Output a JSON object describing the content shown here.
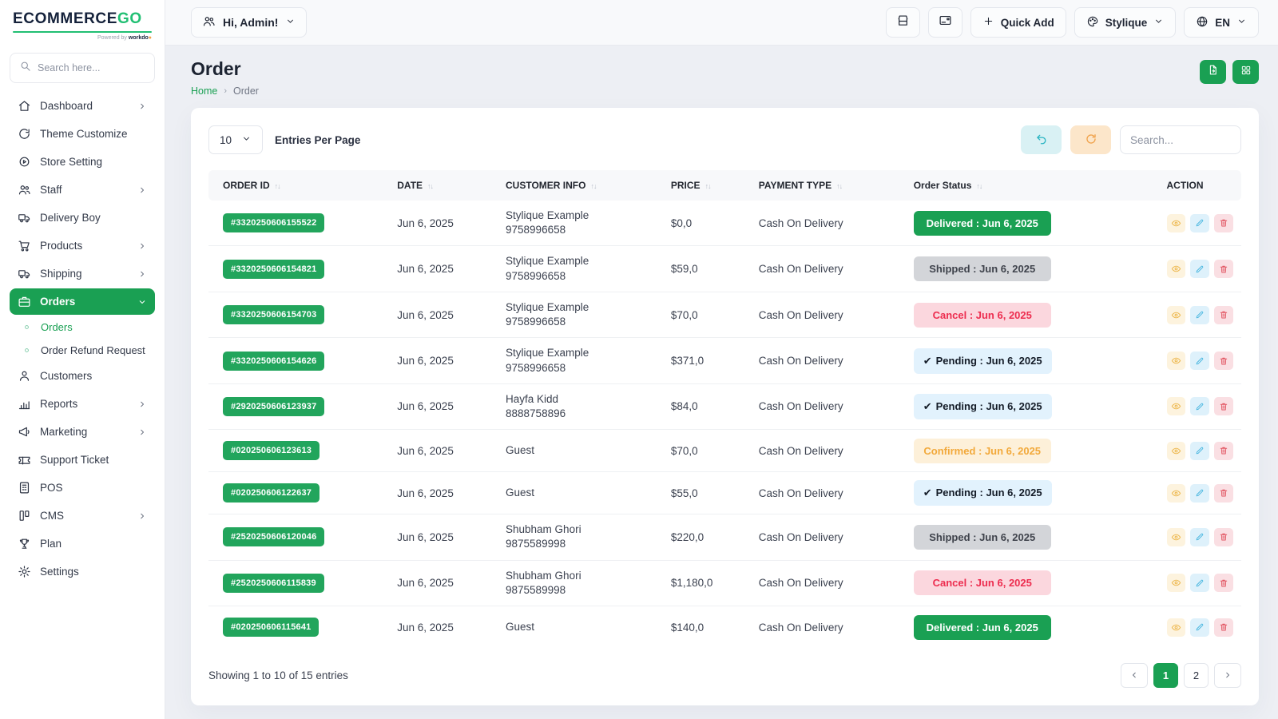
{
  "brand": {
    "logo_main": "ECOMMERCE",
    "logo_accent": "GO",
    "powered_by": "Powered by",
    "powered_brand": "workdo"
  },
  "topbar": {
    "greeting": "Hi, Admin!",
    "quick_add_label": "Quick Add",
    "theme_label": "Stylique",
    "lang_label": "EN"
  },
  "sidebar": {
    "search_placeholder": "Search here...",
    "items": [
      {
        "icon": "home",
        "label": "Dashboard",
        "chevron": "right"
      },
      {
        "icon": "theme",
        "label": "Theme Customize"
      },
      {
        "icon": "gear-badge",
        "label": "Store Setting"
      },
      {
        "icon": "users",
        "label": "Staff",
        "chevron": "right"
      },
      {
        "icon": "truck",
        "label": "Delivery Boy"
      },
      {
        "icon": "cart",
        "label": "Products",
        "chevron": "right"
      },
      {
        "icon": "truck",
        "label": "Shipping",
        "chevron": "right"
      },
      {
        "icon": "briefcase",
        "label": "Orders",
        "chevron": "down",
        "active": true
      },
      {
        "icon": "dot",
        "label": "Orders",
        "sub": true,
        "subactive": true
      },
      {
        "icon": "dot",
        "label": "Order Refund Request",
        "sub": true
      },
      {
        "icon": "user",
        "label": "Customers"
      },
      {
        "icon": "chart",
        "label": "Reports",
        "chevron": "right"
      },
      {
        "icon": "megaphone",
        "label": "Marketing",
        "chevron": "right"
      },
      {
        "icon": "ticket",
        "label": "Support Ticket"
      },
      {
        "icon": "pos",
        "label": "POS"
      },
      {
        "icon": "cms",
        "label": "CMS",
        "chevron": "right"
      },
      {
        "icon": "trophy",
        "label": "Plan"
      },
      {
        "icon": "gear",
        "label": "Settings"
      }
    ]
  },
  "page": {
    "title": "Order",
    "breadcrumb_home": "Home",
    "breadcrumb_current": "Order"
  },
  "controls": {
    "entries_value": "10",
    "entries_label": "Entries Per Page",
    "search_placeholder": "Search..."
  },
  "table": {
    "headers": [
      {
        "label": "ORDER ID",
        "sortable": true
      },
      {
        "label": "DATE",
        "sortable": true
      },
      {
        "label": "CUSTOMER INFO",
        "sortable": true
      },
      {
        "label": "PRICE",
        "sortable": true
      },
      {
        "label": "PAYMENT TYPE",
        "sortable": true
      },
      {
        "label": "Order Status",
        "sortable": true
      },
      {
        "label": "ACTION",
        "sortable": false
      }
    ],
    "rows": [
      {
        "id": "#3320250606155522",
        "date": "Jun 6, 2025",
        "customer": "Stylique Example",
        "phone": "9758996658",
        "price": "$0,0",
        "payment": "Cash On Delivery",
        "status": "Delivered : Jun 6, 2025",
        "status_type": "delivered",
        "status_check": false
      },
      {
        "id": "#3320250606154821",
        "date": "Jun 6, 2025",
        "customer": "Stylique Example",
        "phone": "9758996658",
        "price": "$59,0",
        "payment": "Cash On Delivery",
        "status": "Shipped : Jun 6, 2025",
        "status_type": "shipped",
        "status_check": false
      },
      {
        "id": "#3320250606154703",
        "date": "Jun 6, 2025",
        "customer": "Stylique Example",
        "phone": "9758996658",
        "price": "$70,0",
        "payment": "Cash On Delivery",
        "status": "Cancel : Jun 6, 2025",
        "status_type": "cancel",
        "status_check": false
      },
      {
        "id": "#3320250606154626",
        "date": "Jun 6, 2025",
        "customer": "Stylique Example",
        "phone": "9758996658",
        "price": "$371,0",
        "payment": "Cash On Delivery",
        "status": "Pending : Jun 6, 2025",
        "status_type": "pending",
        "status_check": true
      },
      {
        "id": "#2920250606123937",
        "date": "Jun 6, 2025",
        "customer": "Hayfa Kidd",
        "phone": "8888758896",
        "price": "$84,0",
        "payment": "Cash On Delivery",
        "status": "Pending : Jun 6, 2025",
        "status_type": "pending",
        "status_check": true
      },
      {
        "id": "#020250606123613",
        "date": "Jun 6, 2025",
        "customer": "Guest",
        "phone": "",
        "price": "$70,0",
        "payment": "Cash On Delivery",
        "status": "Confirmed : Jun 6, 2025",
        "status_type": "confirmed",
        "status_check": false
      },
      {
        "id": "#020250606122637",
        "date": "Jun 6, 2025",
        "customer": "Guest",
        "phone": "",
        "price": "$55,0",
        "payment": "Cash On Delivery",
        "status": "Pending : Jun 6, 2025",
        "status_type": "pending",
        "status_check": true
      },
      {
        "id": "#2520250606120046",
        "date": "Jun 6, 2025",
        "customer": "Shubham Ghori",
        "phone": "9875589998",
        "price": "$220,0",
        "payment": "Cash On Delivery",
        "status": "Shipped : Jun 6, 2025",
        "status_type": "shipped",
        "status_check": false
      },
      {
        "id": "#2520250606115839",
        "date": "Jun 6, 2025",
        "customer": "Shubham Ghori",
        "phone": "9875589998",
        "price": "$1,180,0",
        "payment": "Cash On Delivery",
        "status": "Cancel : Jun 6, 2025",
        "status_type": "cancel",
        "status_check": false
      },
      {
        "id": "#020250606115641",
        "date": "Jun 6, 2025",
        "customer": "Guest",
        "phone": "",
        "price": "$140,0",
        "payment": "Cash On Delivery",
        "status": "Delivered : Jun 6, 2025",
        "status_type": "delivered",
        "status_check": false
      }
    ]
  },
  "footer": {
    "showing": "Showing 1 to 10 of 15 entries",
    "pages": [
      "1",
      "2"
    ],
    "active_page": "1"
  },
  "colors": {
    "primary": "#1aa053",
    "logo_accent": "#21bf73",
    "status_delivered_bg": "#1aa053",
    "status_shipped_bg": "#d3d5d9",
    "status_cancel_bg": "#fbd7de",
    "status_cancel_text": "#ed2d4f",
    "status_pending_bg": "#e2f2fd",
    "status_confirmed_bg": "#fdf0d9",
    "status_confirmed_text": "#f2a93b"
  }
}
